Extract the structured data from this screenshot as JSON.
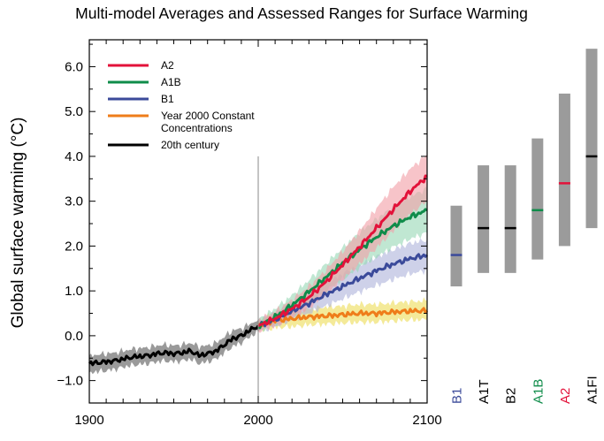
{
  "chart_data": {
    "type": "line",
    "title": "Multi-model Averages and Assessed Ranges for Surface Warming",
    "ylabel": "Global surface warming (°C)",
    "xlabel": "",
    "xlim": [
      1900,
      2100
    ],
    "ylim": [
      -1.5,
      6.6
    ],
    "x_ticks": [
      "1900",
      "2000",
      "2100"
    ],
    "y_ticks": [
      "6.0",
      "5.0",
      "4.0",
      "3.0",
      "2.0",
      "1.0",
      "0.0",
      "−1.0"
    ],
    "y_tick_values": [
      6,
      5,
      4,
      3,
      2,
      1,
      0,
      -1
    ],
    "vertical_marker_x": 2000,
    "legend_placement": "top-left",
    "legend": [
      "A2",
      "A1B",
      "B1",
      "Year 2000 Constant\nConcentrations",
      "20th century"
    ],
    "series": [
      {
        "name": "20th century",
        "color": "#000000",
        "band_color": "#9a9a9a",
        "x": [
          1900,
          1905,
          1910,
          1915,
          1920,
          1925,
          1930,
          1935,
          1940,
          1945,
          1950,
          1955,
          1960,
          1965,
          1970,
          1975,
          1980,
          1985,
          1990,
          1995,
          2000
        ],
        "y": [
          -0.62,
          -0.6,
          -0.58,
          -0.56,
          -0.52,
          -0.48,
          -0.46,
          -0.44,
          -0.4,
          -0.38,
          -0.4,
          -0.38,
          -0.34,
          -0.44,
          -0.4,
          -0.34,
          -0.2,
          -0.06,
          0.0,
          0.12,
          0.22
        ],
        "lower": [
          -0.82,
          -0.8,
          -0.78,
          -0.75,
          -0.7,
          -0.66,
          -0.64,
          -0.62,
          -0.58,
          -0.56,
          -0.58,
          -0.56,
          -0.52,
          -0.62,
          -0.58,
          -0.52,
          -0.38,
          -0.24,
          -0.16,
          -0.02,
          0.08
        ],
        "upper": [
          -0.44,
          -0.42,
          -0.4,
          -0.38,
          -0.34,
          -0.3,
          -0.28,
          -0.26,
          -0.22,
          -0.2,
          -0.22,
          -0.2,
          -0.16,
          -0.24,
          -0.22,
          -0.16,
          -0.02,
          0.12,
          0.16,
          0.26,
          0.36
        ]
      },
      {
        "name": "Year 2000 Constant\nConcentrations",
        "color": "#ef7d1a",
        "band_color": "#eedd5a",
        "x": [
          2000,
          2010,
          2020,
          2030,
          2040,
          2050,
          2060,
          2070,
          2080,
          2090,
          2100
        ],
        "y": [
          0.22,
          0.34,
          0.38,
          0.42,
          0.44,
          0.47,
          0.5,
          0.5,
          0.53,
          0.55,
          0.56
        ],
        "lower": [
          0.1,
          0.18,
          0.2,
          0.24,
          0.26,
          0.28,
          0.3,
          0.3,
          0.33,
          0.35,
          0.36
        ],
        "upper": [
          0.34,
          0.5,
          0.58,
          0.6,
          0.64,
          0.66,
          0.7,
          0.7,
          0.73,
          0.76,
          0.78
        ]
      },
      {
        "name": "B1",
        "color": "#3b4a9a",
        "band_color": "#b0b4dc",
        "x": [
          2000,
          2010,
          2020,
          2030,
          2040,
          2050,
          2060,
          2070,
          2080,
          2090,
          2100
        ],
        "y": [
          0.22,
          0.36,
          0.55,
          0.72,
          0.92,
          1.1,
          1.28,
          1.45,
          1.6,
          1.72,
          1.8
        ],
        "lower": [
          0.1,
          0.2,
          0.36,
          0.5,
          0.66,
          0.82,
          0.98,
          1.12,
          1.26,
          1.38,
          1.46
        ],
        "upper": [
          0.34,
          0.52,
          0.74,
          0.94,
          1.16,
          1.38,
          1.58,
          1.76,
          1.92,
          2.06,
          2.14
        ]
      },
      {
        "name": "A1B",
        "color": "#0f8c4a",
        "band_color": "#9ad8b6",
        "x": [
          2000,
          2010,
          2020,
          2030,
          2040,
          2050,
          2060,
          2070,
          2080,
          2090,
          2100
        ],
        "y": [
          0.22,
          0.42,
          0.68,
          0.98,
          1.3,
          1.62,
          1.92,
          2.2,
          2.45,
          2.65,
          2.8
        ],
        "lower": [
          0.1,
          0.26,
          0.46,
          0.72,
          1.0,
          1.26,
          1.52,
          1.76,
          1.98,
          2.16,
          2.3
        ],
        "upper": [
          0.36,
          0.6,
          0.9,
          1.24,
          1.6,
          1.96,
          2.3,
          2.6,
          2.88,
          3.1,
          3.28
        ]
      },
      {
        "name": "A2",
        "color": "#e3123a",
        "band_color": "#f2a0a8",
        "x": [
          2000,
          2010,
          2020,
          2030,
          2040,
          2050,
          2060,
          2070,
          2080,
          2090,
          2100
        ],
        "y": [
          0.22,
          0.38,
          0.6,
          0.86,
          1.2,
          1.58,
          1.98,
          2.4,
          2.82,
          3.22,
          3.56
        ],
        "lower": [
          0.1,
          0.22,
          0.4,
          0.62,
          0.92,
          1.26,
          1.6,
          1.96,
          2.34,
          2.7,
          3.02
        ],
        "upper": [
          0.34,
          0.54,
          0.8,
          1.1,
          1.46,
          1.88,
          2.34,
          2.84,
          3.32,
          3.72,
          4.04
        ]
      }
    ],
    "assessed_ranges": [
      {
        "label": "B1",
        "low": 1.1,
        "high": 2.9,
        "best": 1.8,
        "best_color": "#3b4a9a",
        "label_color": "#3b4a9a"
      },
      {
        "label": "A1T",
        "low": 1.4,
        "high": 3.8,
        "best": 2.4,
        "best_color": "#000000",
        "label_color": "#000000"
      },
      {
        "label": "B2",
        "low": 1.4,
        "high": 3.8,
        "best": 2.4,
        "best_color": "#000000",
        "label_color": "#000000"
      },
      {
        "label": "A1B",
        "low": 1.7,
        "high": 4.4,
        "best": 2.8,
        "best_color": "#0f8c4a",
        "label_color": "#0f8c4a"
      },
      {
        "label": "A2",
        "low": 2.0,
        "high": 5.4,
        "best": 3.4,
        "best_color": "#e3123a",
        "label_color": "#e3123a"
      },
      {
        "label": "A1FI",
        "low": 2.4,
        "high": 6.4,
        "best": 4.0,
        "best_color": "#000000",
        "label_color": "#000000"
      }
    ],
    "range_bar_color": "#9b9b9b",
    "grid": false
  }
}
